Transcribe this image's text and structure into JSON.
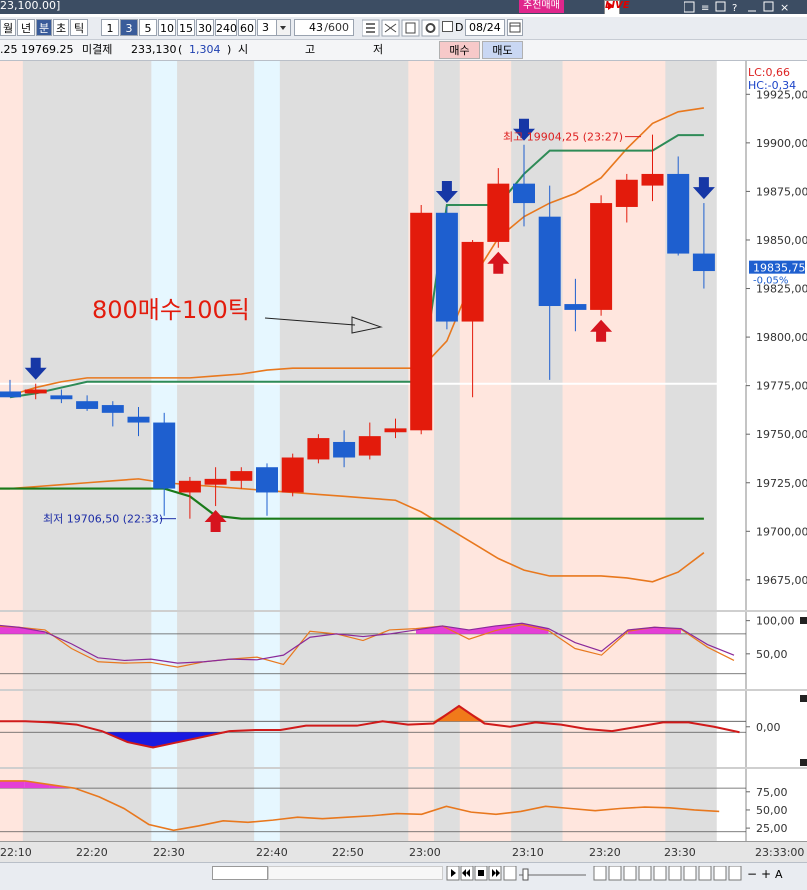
{
  "window": {
    "title_fragment": "23,100.00]",
    "recommend_button": "추천매매",
    "live_button": "LIVE"
  },
  "toolbar": {
    "period_tabs": [
      {
        "label": "월",
        "selected": false
      },
      {
        "label": "년",
        "selected": false
      },
      {
        "label": "분",
        "selected": true
      },
      {
        "label": "초",
        "selected": false
      },
      {
        "label": "틱",
        "selected": false
      }
    ],
    "interval_buttons": [
      {
        "label": "1",
        "selected": false
      },
      {
        "label": "3",
        "selected": true
      },
      {
        "label": "5",
        "selected": false
      },
      {
        "label": "10",
        "selected": false
      },
      {
        "label": "15",
        "selected": false
      },
      {
        "label": "30",
        "selected": false
      },
      {
        "label": "240",
        "selected": false
      },
      {
        "label": "60",
        "selected": false
      }
    ],
    "interval_value": "3",
    "count_value": "43",
    "count_max": "/600",
    "date_checkbox_label": "D",
    "date_value": "08/24"
  },
  "infobar": {
    "price": ".25  19769.25",
    "open_interest_label": "미결제",
    "open_interest_value": "233,130",
    "oi_change_open": "(",
    "oi_change": "1,304",
    "oi_change_close": ")",
    "ohlc_labels": [
      "시",
      "고",
      "저"
    ],
    "buy_button": "매수",
    "sell_button": "매도"
  },
  "chart_data": {
    "type": "candlestick",
    "x_labels": [
      "22:10",
      "22:20",
      "22:30",
      "22:40",
      "22:50",
      "23:00",
      "23:10",
      "23:20",
      "23:30",
      "23:33:00"
    ],
    "y_ticks": [
      "19925,00",
      "19900,00",
      "19875,00",
      "19850,00",
      "19825,00",
      "19800,00",
      "19775,00",
      "19750,00",
      "19725,00",
      "19700,00",
      "19675,00"
    ],
    "ylim": [
      19660,
      19937
    ],
    "lc_label": "LC:0,66",
    "hc_label": "HC:-0,34",
    "current_price": "19835,75",
    "current_change": "-0,05%",
    "high_label": "최고 19904,25 (23:27)",
    "low_label": "최저 19706,50 (22:33)",
    "annotation": "800매수100틱",
    "candles": [
      {
        "t": "22:12",
        "o": 19772,
        "h": 19778,
        "l": 19769,
        "c": 19769
      },
      {
        "t": "22:15",
        "o": 19771,
        "h": 19776,
        "l": 19768,
        "c": 19773
      },
      {
        "t": "22:18",
        "o": 19770,
        "h": 19773,
        "l": 19766,
        "c": 19768
      },
      {
        "t": "22:21",
        "o": 19767,
        "h": 19770,
        "l": 19762,
        "c": 19763
      },
      {
        "t": "22:24",
        "o": 19765,
        "h": 19767,
        "l": 19754,
        "c": 19761
      },
      {
        "t": "22:27",
        "o": 19759,
        "h": 19764,
        "l": 19749,
        "c": 19756
      },
      {
        "t": "22:30",
        "o": 19756,
        "h": 19761,
        "l": 19708,
        "c": 19722
      },
      {
        "t": "22:33",
        "o": 19720,
        "h": 19728,
        "l": 19706.5,
        "c": 19726
      },
      {
        "t": "22:36",
        "o": 19724,
        "h": 19733,
        "l": 19713,
        "c": 19727
      },
      {
        "t": "22:39",
        "o": 19726,
        "h": 19733,
        "l": 19722,
        "c": 19731
      },
      {
        "t": "22:42",
        "o": 19733,
        "h": 19735,
        "l": 19708,
        "c": 19720
      },
      {
        "t": "22:45",
        "o": 19720,
        "h": 19740,
        "l": 19718,
        "c": 19738
      },
      {
        "t": "22:48",
        "o": 19737,
        "h": 19750,
        "l": 19735,
        "c": 19748
      },
      {
        "t": "22:51",
        "o": 19746,
        "h": 19752,
        "l": 19733,
        "c": 19738
      },
      {
        "t": "22:54",
        "o": 19739,
        "h": 19756,
        "l": 19737,
        "c": 19749
      },
      {
        "t": "22:57",
        "o": 19751,
        "h": 19758,
        "l": 19748,
        "c": 19753
      },
      {
        "t": "23:00",
        "o": 19752,
        "h": 19868,
        "l": 19750,
        "c": 19864
      },
      {
        "t": "23:03",
        "o": 19864,
        "h": 19867,
        "l": 19804,
        "c": 19808
      },
      {
        "t": "23:06",
        "o": 19808,
        "h": 19850,
        "l": 19769,
        "c": 19849
      },
      {
        "t": "23:09",
        "o": 19849,
        "h": 19887,
        "l": 19846,
        "c": 19879
      },
      {
        "t": "23:12",
        "o": 19879,
        "h": 19899,
        "l": 19857,
        "c": 19869
      },
      {
        "t": "23:15",
        "o": 19862,
        "h": 19878,
        "l": 19778,
        "c": 19816
      },
      {
        "t": "23:18",
        "o": 19817,
        "h": 19830,
        "l": 19803,
        "c": 19814
      },
      {
        "t": "23:21",
        "o": 19814,
        "h": 19873,
        "l": 19811,
        "c": 19869
      },
      {
        "t": "23:24",
        "o": 19867,
        "h": 19884,
        "l": 19859,
        "c": 19881
      },
      {
        "t": "23:27",
        "o": 19878,
        "h": 19904.25,
        "l": 19870,
        "c": 19884
      },
      {
        "t": "23:30",
        "o": 19884,
        "h": 19893,
        "l": 19842,
        "c": 19843
      },
      {
        "t": "23:33",
        "o": 19843,
        "h": 19869,
        "l": 19825,
        "c": 19834
      }
    ],
    "upper_band": [
      19770,
      19774,
      19777,
      19779,
      19779,
      19779,
      19779,
      19779,
      19780,
      19781,
      19783,
      19784,
      19784,
      19784,
      19784,
      19784,
      19784,
      19798,
      19830,
      19851,
      19862,
      19869,
      19874,
      19882,
      19897,
      19910,
      19916,
      19918
    ],
    "lower_band": [
      19722,
      19723,
      19724,
      19725,
      19726,
      19727,
      19725,
      19724,
      19723,
      19722,
      19721,
      19720,
      19719,
      19718,
      19717,
      19716,
      19710,
      19702,
      19694,
      19686,
      19680,
      19677,
      19677,
      19677,
      19676,
      19674,
      19679,
      19689
    ],
    "upper_stop": [
      19769,
      19771,
      19774,
      19777,
      19777,
      19777,
      19777,
      19777,
      19777,
      19777,
      19777,
      19777,
      19777,
      19777,
      19777,
      19777,
      19777,
      19868,
      19868,
      19868,
      19884,
      19896,
      19896,
      19896,
      19896,
      19896,
      19904,
      19904
    ],
    "lower_stop": [
      19722,
      19722,
      19722,
      19722,
      19722,
      19722,
      19722,
      19718,
      19708,
      19706.5,
      19706.5,
      19706.5,
      19706.5,
      19706.5,
      19706.5,
      19706.5,
      19706.5,
      19706.5,
      19706.5,
      19706.5,
      19706.5,
      19706.5,
      19706.5,
      19706.5,
      19706.5,
      19706.5,
      19706.5,
      19706.5
    ],
    "sell_signals": [
      1,
      17,
      20,
      27
    ],
    "buy_signals": [
      8,
      19,
      23
    ],
    "panel1": {
      "y_ticks": [
        "100,00",
        "50,00"
      ],
      "ylim": [
        0,
        110
      ],
      "k": [
        94,
        90,
        83,
        65,
        44,
        40,
        42,
        36,
        38,
        42,
        41,
        48,
        75,
        80,
        76,
        80,
        86,
        92,
        86,
        92,
        96,
        88,
        67,
        54,
        86,
        90,
        88,
        64,
        48
      ],
      "d": [
        92,
        90,
        86,
        58,
        38,
        36,
        37,
        30,
        38,
        42,
        45,
        34,
        84,
        80,
        70,
        86,
        88,
        92,
        72,
        85,
        94,
        85,
        58,
        48,
        84,
        90,
        87,
        60,
        40
      ]
    },
    "panel2": {
      "y_ticks": [
        "0,00"
      ],
      "ylim": [
        -35,
        30
      ],
      "macd": [
        5,
        5,
        4,
        2,
        -4,
        -14,
        -19,
        -14,
        -9,
        -4,
        -3,
        -3,
        1,
        1,
        1,
        5,
        2,
        3,
        19,
        3,
        0,
        4,
        2,
        -2,
        -4,
        0,
        4,
        4,
        0,
        -5
      ],
      "signal": [
        0,
        0,
        0,
        0,
        0,
        -5,
        -8,
        -8,
        -7,
        -4,
        -2,
        -1,
        0,
        0,
        0,
        0,
        1,
        1,
        5,
        5,
        4,
        2,
        1,
        0,
        -1,
        -1,
        0,
        0,
        0,
        -3
      ]
    },
    "panel3": {
      "y_ticks": [
        "75,00",
        "50,00",
        "25,00"
      ],
      "ylim": [
        10,
        105
      ],
      "line": [
        90,
        90,
        85,
        80,
        68,
        52,
        30,
        22,
        28,
        35,
        33,
        36,
        40,
        38,
        40,
        42,
        45,
        44,
        55,
        47,
        44,
        48,
        55,
        52,
        49,
        52,
        54,
        53,
        50,
        48
      ]
    }
  }
}
